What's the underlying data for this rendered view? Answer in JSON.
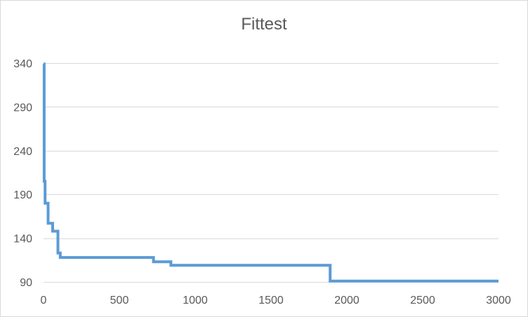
{
  "chart_data": {
    "type": "line",
    "title": "Fittest",
    "xlabel": "",
    "ylabel": "",
    "xlim": [
      0,
      3000
    ],
    "ylim": [
      90,
      340
    ],
    "x_ticks": [
      0,
      500,
      1000,
      1500,
      2000,
      2500,
      3000
    ],
    "y_ticks": [
      90,
      140,
      190,
      240,
      290,
      340
    ],
    "x_tick_labels": [
      "0",
      "500",
      "1000",
      "1500",
      "2000",
      "2500",
      "3000"
    ],
    "y_tick_labels": [
      "90",
      "140",
      "190",
      "240",
      "290",
      "340"
    ],
    "grid": "horizontal",
    "legend": "none",
    "series": [
      {
        "color": "#5b9bd5",
        "step": "post",
        "x": [
          0,
          4,
          10,
          30,
          60,
          95,
          110,
          725,
          840,
          1890,
          3000
        ],
        "y": [
          339,
          205,
          180,
          157,
          148,
          123,
          118,
          113,
          109,
          91,
          91
        ]
      }
    ]
  }
}
